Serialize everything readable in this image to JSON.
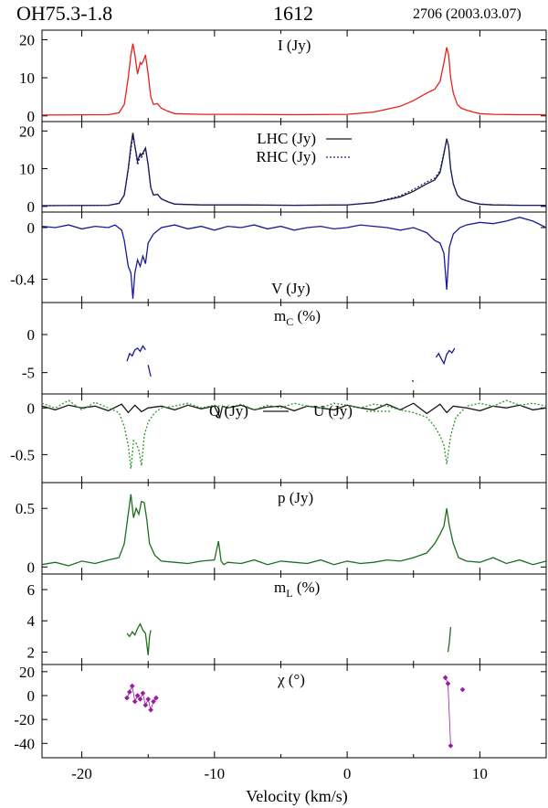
{
  "header": {
    "source": "OH75.3-1.8",
    "line": "1612",
    "observation": "2706 (2003.03.07)"
  },
  "colors": {
    "I": "#e8201a",
    "LHC": "#1a1a1a",
    "RHC": "#1c1ca8",
    "V": "#1a1a9a",
    "mC": "#1a1a9a",
    "Q": "#1a1a1a",
    "U": "#2a9a2a",
    "p": "#1e6e1e",
    "mL": "#1e6e1e",
    "chi": "#9a1aa2"
  },
  "chart_data": [
    {
      "type": "line",
      "title": "I (Jy)",
      "xlim": [
        -23,
        15
      ],
      "ylim": [
        -1.5,
        22.5
      ],
      "yticks": [
        "0",
        "10",
        "20"
      ],
      "series": [
        {
          "name": "I (Jy)",
          "style": "solid",
          "color": "#e8201a",
          "x": [
            -23,
            -18,
            -17.2,
            -16.8,
            -16.5,
            -16.3,
            -16.15,
            -16.0,
            -15.8,
            -15.6,
            -15.5,
            -15.35,
            -15.2,
            -15.0,
            -14.8,
            -14.6,
            -14.3,
            -14.0,
            -13.5,
            -13,
            -11,
            -8,
            -4,
            0,
            2,
            4,
            5,
            6,
            6.6,
            7.0,
            7.3,
            7.5,
            7.65,
            7.8,
            8.0,
            8.3,
            8.6,
            9.0,
            9.5,
            10,
            11,
            13,
            15
          ],
          "y": [
            0.2,
            0.3,
            0.8,
            3,
            10,
            16,
            19,
            16,
            11,
            14,
            13.5,
            14.5,
            16,
            11,
            5,
            3,
            3.2,
            2,
            1.2,
            0.6,
            0.4,
            0.4,
            0.3,
            0.4,
            1,
            2.5,
            4,
            6,
            7,
            9,
            14,
            18,
            16,
            10,
            6,
            3,
            2,
            1.5,
            1,
            0.6,
            0.4,
            0.3,
            0.3
          ]
        }
      ]
    },
    {
      "type": "line",
      "title": "LHC (Jy)",
      "xlim": [
        -23,
        15
      ],
      "ylim": [
        -1.5,
        22.5
      ],
      "yticks": [
        "0",
        "10",
        "20"
      ],
      "legend": [
        "LHC (Jy)",
        "RHC (Jy)"
      ],
      "series": [
        {
          "name": "LHC (Jy)",
          "style": "solid",
          "color": "#1a1a1a",
          "x": [
            -23,
            -18,
            -17.2,
            -16.8,
            -16.5,
            -16.3,
            -16.15,
            -16.0,
            -15.8,
            -15.6,
            -15.5,
            -15.35,
            -15.2,
            -15.0,
            -14.8,
            -14.6,
            -14.3,
            -14.0,
            -13.5,
            -13,
            -11,
            -8,
            -4,
            0,
            2,
            4,
            5,
            6,
            6.6,
            7.0,
            7.3,
            7.5,
            7.65,
            7.8,
            8.0,
            8.3,
            8.6,
            9.0,
            9.5,
            10,
            11,
            13,
            15
          ],
          "y": [
            0.2,
            0.3,
            0.8,
            3,
            10,
            16,
            19.5,
            16,
            12,
            14,
            13.5,
            14.5,
            15.5,
            11,
            5,
            3,
            3.2,
            2,
            1.2,
            0.6,
            0.4,
            0.4,
            0.3,
            0.4,
            1,
            2.5,
            4,
            6,
            7,
            9,
            14,
            18,
            16,
            10,
            6,
            3,
            2,
            1.5,
            1,
            0.6,
            0.4,
            0.3,
            0.3
          ]
        },
        {
          "name": "RHC (Jy)",
          "style": "dotted",
          "color": "#1c1ca8",
          "x": [
            -23,
            -18,
            -17.2,
            -16.8,
            -16.5,
            -16.3,
            -16.15,
            -16.0,
            -15.8,
            -15.6,
            -15.5,
            -15.35,
            -15.2,
            -15.0,
            -14.8,
            -14.6,
            -14.3,
            -14.0,
            -13.5,
            -13,
            -11,
            -8,
            -4,
            0,
            2,
            4,
            5,
            6,
            6.6,
            7.0,
            7.3,
            7.5,
            7.65,
            7.8,
            8.0,
            8.3,
            8.6,
            9.0,
            9.5,
            10,
            11,
            13,
            15
          ],
          "y": [
            0.2,
            0.3,
            0.8,
            3,
            9.5,
            15,
            18.5,
            16,
            11,
            13.5,
            13,
            14,
            15.5,
            11,
            5,
            3,
            3.2,
            2,
            1.2,
            0.6,
            0.4,
            0.4,
            0.3,
            0.4,
            1,
            2.8,
            4.5,
            6.5,
            7.5,
            9.5,
            14.5,
            17.5,
            16,
            10,
            6,
            3,
            2,
            1.5,
            1,
            0.6,
            0.4,
            0.3,
            0.3
          ]
        }
      ]
    },
    {
      "type": "line",
      "xlabel_inner": "V (Jy)",
      "xlim": [
        -23,
        15
      ],
      "ylim": [
        -0.58,
        0.12
      ],
      "yticks": [
        "0",
        "-0.4"
      ],
      "series": [
        {
          "name": "V (Jy)",
          "style": "solid",
          "color": "#1a1a9a",
          "x": [
            -23,
            -22,
            -21,
            -20,
            -19,
            -18,
            -17.5,
            -17,
            -16.8,
            -16.5,
            -16.3,
            -16.15,
            -16.0,
            -15.8,
            -15.6,
            -15.4,
            -15.2,
            -15.0,
            -14.6,
            -14,
            -13,
            -12,
            -11,
            -10,
            -9,
            -8,
            -7,
            -6,
            -5,
            -4,
            -3,
            -2,
            -1,
            0,
            1,
            2,
            3,
            4,
            5,
            6,
            6.6,
            7.0,
            7.3,
            7.5,
            7.7,
            8.0,
            8.5,
            9,
            10,
            11,
            12,
            13,
            14,
            15
          ],
          "y": [
            0.01,
            0,
            0.02,
            -0.01,
            0.01,
            0.0,
            0.02,
            -0.02,
            -0.1,
            -0.3,
            -0.35,
            -0.55,
            -0.35,
            -0.25,
            -0.3,
            -0.22,
            -0.28,
            -0.12,
            -0.05,
            0.0,
            0.02,
            -0.01,
            0.01,
            -0.02,
            0.01,
            0.0,
            0.02,
            -0.01,
            0.01,
            -0.02,
            0.0,
            0.01,
            -0.01,
            0.0,
            0.02,
            0.01,
            0.0,
            -0.02,
            0.0,
            -0.04,
            -0.1,
            -0.12,
            -0.2,
            -0.48,
            -0.15,
            -0.05,
            0.0,
            0.02,
            0.04,
            0.03,
            0.05,
            0.08,
            0.05,
            0.0
          ]
        }
      ]
    },
    {
      "type": "line",
      "title": "mC (%)",
      "xlim": [
        -23,
        15
      ],
      "ylim": [
        -7.8,
        4.2
      ],
      "yticks": [
        "0",
        "-5"
      ],
      "series": [
        {
          "name": "mC seg1",
          "style": "solid",
          "color": "#1a1a9a",
          "x": [
            -16.6,
            -16.4,
            -16.2,
            -16.0,
            -15.8,
            -15.6,
            -15.4,
            -15.2
          ],
          "y": [
            -3.5,
            -2.5,
            -2.8,
            -2.0,
            -1.8,
            -2.2,
            -1.5,
            -2.0
          ]
        },
        {
          "name": "mC seg2",
          "style": "solid",
          "color": "#1a1a9a",
          "x": [
            -15.0,
            -14.9,
            -14.8
          ],
          "y": [
            -4.0,
            -4.8,
            -5.5
          ]
        },
        {
          "name": "mC seg3",
          "style": "solid",
          "color": "#1a1a9a",
          "x": [
            6.7,
            6.9,
            7.1,
            7.3,
            7.5,
            7.7,
            7.9,
            8.1
          ],
          "y": [
            -3.0,
            -2.5,
            -3.2,
            -3.8,
            -2.6,
            -2.1,
            -2.4,
            -1.8
          ]
        },
        {
          "name": "mC seg4",
          "style": "solid",
          "color": "#1a1a9a",
          "x": [
            4.9,
            5.0
          ],
          "y": [
            -6.0,
            -6.2
          ]
        }
      ]
    },
    {
      "type": "line",
      "legend": [
        "Q (Jy)",
        "U (Jy)"
      ],
      "xlim": [
        -23,
        15
      ],
      "ylim": [
        -0.8,
        0.15
      ],
      "yticks": [
        "0",
        "-0.5"
      ],
      "series": [
        {
          "name": "Q (Jy)",
          "style": "solid",
          "color": "#1a1a1a",
          "x": [
            -23,
            -22,
            -21,
            -20,
            -19,
            -18,
            -17,
            -16.5,
            -16,
            -15.5,
            -15,
            -14,
            -13,
            -12,
            -11,
            -10,
            -9.6,
            -9.4,
            -9,
            -8,
            -7,
            -6,
            -5,
            -4,
            -3,
            -2,
            -1,
            0,
            1,
            2,
            3,
            4,
            5,
            6,
            7,
            7.5,
            8,
            9,
            10,
            11,
            12,
            13,
            14,
            15
          ],
          "y": [
            0.02,
            -0.02,
            0.03,
            0.0,
            0.02,
            -0.03,
            0.04,
            -0.05,
            0.03,
            -0.04,
            0.0,
            0.02,
            -0.02,
            0.03,
            -0.01,
            0.02,
            -0.1,
            0.02,
            0.0,
            0.03,
            -0.02,
            0.01,
            0.02,
            -0.03,
            0.02,
            0.0,
            -0.02,
            0.03,
            0.0,
            -0.02,
            0.04,
            -0.02,
            0.05,
            -0.06,
            0.04,
            -0.05,
            0.02,
            0.0,
            -0.03,
            0.02,
            0.0,
            0.03,
            -0.02,
            0.0
          ]
        },
        {
          "name": "U (Jy)",
          "style": "dotted",
          "color": "#2a9a2a",
          "x": [
            -23,
            -22,
            -21,
            -20,
            -19,
            -18,
            -17.2,
            -16.8,
            -16.5,
            -16.3,
            -16.1,
            -15.9,
            -15.7,
            -15.5,
            -15.3,
            -15.0,
            -14.5,
            -14,
            -13,
            -12,
            -11,
            -10,
            -9,
            -8,
            -7,
            -6,
            -5,
            -4,
            -3,
            -2,
            -1,
            0,
            1,
            2,
            3,
            4,
            5,
            6,
            6.6,
            7.0,
            7.3,
            7.5,
            7.8,
            8.2,
            9,
            10,
            11,
            12,
            13,
            14,
            15
          ],
          "y": [
            0.05,
            0.0,
            0.08,
            -0.02,
            0.06,
            0.0,
            -0.05,
            -0.2,
            -0.4,
            -0.65,
            -0.35,
            -0.38,
            -0.45,
            -0.62,
            -0.3,
            -0.15,
            -0.05,
            0.0,
            0.02,
            0.05,
            0.0,
            0.03,
            0.0,
            0.04,
            -0.02,
            0.03,
            0.0,
            0.05,
            0.02,
            0.0,
            0.05,
            0.03,
            0.0,
            0.04,
            0.02,
            -0.02,
            -0.05,
            -0.1,
            -0.2,
            -0.3,
            -0.4,
            -0.6,
            -0.3,
            -0.1,
            0.02,
            0.05,
            0.02,
            0.08,
            0.03,
            0.05,
            0.02
          ]
        }
      ]
    },
    {
      "type": "line",
      "title": "p (Jy)",
      "xlim": [
        -23,
        15
      ],
      "ylim": [
        -0.06,
        0.72
      ],
      "yticks": [
        "0",
        "0.5"
      ],
      "series": [
        {
          "name": "p (Jy)",
          "style": "solid",
          "color": "#1e6e1e",
          "x": [
            -23,
            -22,
            -21,
            -20,
            -19,
            -18,
            -17.2,
            -16.8,
            -16.5,
            -16.3,
            -16.1,
            -15.9,
            -15.7,
            -15.5,
            -15.3,
            -15.1,
            -14.9,
            -14.5,
            -14,
            -13,
            -12,
            -11,
            -10,
            -9.7,
            -9.5,
            -9.3,
            -9,
            -8,
            -7,
            -6,
            -5,
            -4,
            -3,
            -2,
            -1,
            0,
            1,
            2,
            3,
            4,
            5,
            6,
            6.6,
            7.0,
            7.3,
            7.5,
            7.7,
            8.0,
            8.4,
            9,
            10,
            11,
            12,
            13,
            14,
            15
          ],
          "y": [
            0.02,
            0.04,
            0.01,
            0.05,
            0.03,
            0.06,
            0.08,
            0.2,
            0.45,
            0.62,
            0.42,
            0.5,
            0.45,
            0.56,
            0.55,
            0.4,
            0.2,
            0.1,
            0.05,
            0.04,
            0.03,
            0.05,
            0.06,
            0.22,
            0.05,
            0.02,
            0.04,
            0.03,
            0.06,
            0.02,
            0.05,
            0.04,
            0.03,
            0.06,
            0.02,
            0.05,
            0.03,
            0.04,
            0.06,
            0.05,
            0.08,
            0.12,
            0.2,
            0.28,
            0.35,
            0.5,
            0.35,
            0.2,
            0.08,
            0.05,
            0.04,
            0.08,
            0.03,
            0.06,
            0.02,
            0.05
          ]
        }
      ]
    },
    {
      "type": "line",
      "title": "mL (%)",
      "xlim": [
        -23,
        15
      ],
      "ylim": [
        1.2,
        7.0
      ],
      "yticks": [
        "2",
        "4",
        "6"
      ],
      "series": [
        {
          "name": "mL seg1",
          "style": "solid",
          "color": "#1e6e1e",
          "x": [
            -16.6,
            -16.4,
            -16.2,
            -16.0,
            -15.8,
            -15.6,
            -15.4,
            -15.2,
            -15.0,
            -14.9,
            -14.8
          ],
          "y": [
            3.2,
            3.0,
            3.3,
            3.1,
            3.5,
            3.8,
            3.4,
            3.2,
            1.8,
            3.0,
            3.4
          ]
        },
        {
          "name": "mL seg2",
          "style": "solid",
          "color": "#1e6e1e",
          "x": [
            7.6,
            7.7,
            7.8
          ],
          "y": [
            2.0,
            2.6,
            3.6
          ]
        }
      ]
    },
    {
      "type": "scatter",
      "title": "χ (°)",
      "xlabel": "Velocity (km/s)",
      "xlim": [
        -23,
        15
      ],
      "ylim": [
        -52,
        26
      ],
      "yticks": [
        "20",
        "0",
        "-20",
        "-40"
      ],
      "xticks": [
        -20,
        -10,
        0,
        10
      ],
      "series": [
        {
          "name": "χ seg1",
          "style": "markers",
          "color": "#9a1aa2",
          "x": [
            -16.6,
            -16.4,
            -16.2,
            -16.0,
            -15.8,
            -15.6,
            -15.4,
            -15.2,
            -15.0,
            -14.8,
            -14.6,
            -14.4
          ],
          "y": [
            -2,
            3,
            8,
            -5,
            0,
            -3,
            2,
            -8,
            -3,
            -12,
            -5,
            -2
          ]
        },
        {
          "name": "χ seg2",
          "style": "markers",
          "color": "#9a1aa2",
          "x": [
            7.4,
            7.6,
            7.8
          ],
          "y": [
            15,
            10,
            -42
          ]
        },
        {
          "name": "χ seg3",
          "style": "markers",
          "color": "#9a1aa2",
          "x": [
            8.7
          ],
          "y": [
            5
          ]
        }
      ]
    }
  ]
}
